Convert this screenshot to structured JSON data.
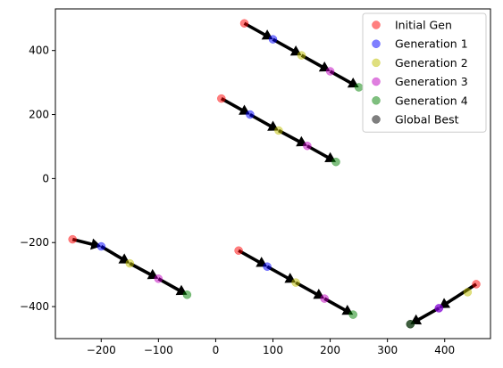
{
  "chart_data": {
    "type": "scatter",
    "title": "",
    "xlabel": "",
    "ylabel": "",
    "xlim": [
      -280,
      480
    ],
    "ylim": [
      -500,
      530
    ],
    "xticks": [
      -200,
      -100,
      0,
      100,
      200,
      300,
      400
    ],
    "yticks": [
      -400,
      -200,
      0,
      200,
      400
    ],
    "grid": false,
    "legend_position": "top-right",
    "series": [
      {
        "name": "Initial Gen",
        "color": "#ff0000",
        "points": [
          [
            50,
            485
          ],
          [
            10,
            250
          ],
          [
            -250,
            -190
          ],
          [
            40,
            -225
          ],
          [
            455,
            -330
          ]
        ]
      },
      {
        "name": "Generation 1",
        "color": "#0000ff",
        "points": [
          [
            100,
            435
          ],
          [
            60,
            200
          ],
          [
            -200,
            -212
          ],
          [
            90,
            -275
          ],
          [
            390,
            -405
          ]
        ]
      },
      {
        "name": "Generation 2",
        "color": "#bfbf00",
        "points": [
          [
            150,
            385
          ],
          [
            110,
            150
          ],
          [
            -150,
            -265
          ],
          [
            140,
            -325
          ],
          [
            440,
            -355
          ]
        ]
      },
      {
        "name": "Generation 3",
        "color": "#bf00bf",
        "points": [
          [
            200,
            335
          ],
          [
            160,
            102
          ],
          [
            -100,
            -313
          ],
          [
            190,
            -375
          ],
          [
            390,
            -405
          ]
        ]
      },
      {
        "name": "Generation 4",
        "color": "#008000",
        "points": [
          [
            250,
            285
          ],
          [
            210,
            52
          ],
          [
            -50,
            -363
          ],
          [
            240,
            -425
          ],
          [
            340,
            -455
          ]
        ]
      },
      {
        "name": "Global Best",
        "color": "#000000",
        "points": [
          [
            340,
            -455
          ]
        ]
      }
    ],
    "arrows": [
      {
        "from": [
          50,
          485
        ],
        "to": [
          100,
          435
        ]
      },
      {
        "from": [
          100,
          435
        ],
        "to": [
          150,
          385
        ]
      },
      {
        "from": [
          150,
          385
        ],
        "to": [
          200,
          335
        ]
      },
      {
        "from": [
          200,
          335
        ],
        "to": [
          250,
          285
        ]
      },
      {
        "from": [
          10,
          250
        ],
        "to": [
          60,
          200
        ]
      },
      {
        "from": [
          60,
          200
        ],
        "to": [
          110,
          150
        ]
      },
      {
        "from": [
          110,
          150
        ],
        "to": [
          160,
          102
        ]
      },
      {
        "from": [
          160,
          102
        ],
        "to": [
          210,
          52
        ]
      },
      {
        "from": [
          -250,
          -190
        ],
        "to": [
          -200,
          -212
        ]
      },
      {
        "from": [
          -200,
          -212
        ],
        "to": [
          -150,
          -265
        ]
      },
      {
        "from": [
          -150,
          -265
        ],
        "to": [
          -100,
          -313
        ]
      },
      {
        "from": [
          -100,
          -313
        ],
        "to": [
          -50,
          -363
        ]
      },
      {
        "from": [
          40,
          -225
        ],
        "to": [
          90,
          -275
        ]
      },
      {
        "from": [
          90,
          -275
        ],
        "to": [
          140,
          -325
        ]
      },
      {
        "from": [
          140,
          -325
        ],
        "to": [
          190,
          -375
        ]
      },
      {
        "from": [
          190,
          -375
        ],
        "to": [
          240,
          -425
        ]
      },
      {
        "from": [
          455,
          -330
        ],
        "to": [
          390,
          -405
        ]
      },
      {
        "from": [
          390,
          -405
        ],
        "to": [
          340,
          -455
        ]
      }
    ]
  }
}
